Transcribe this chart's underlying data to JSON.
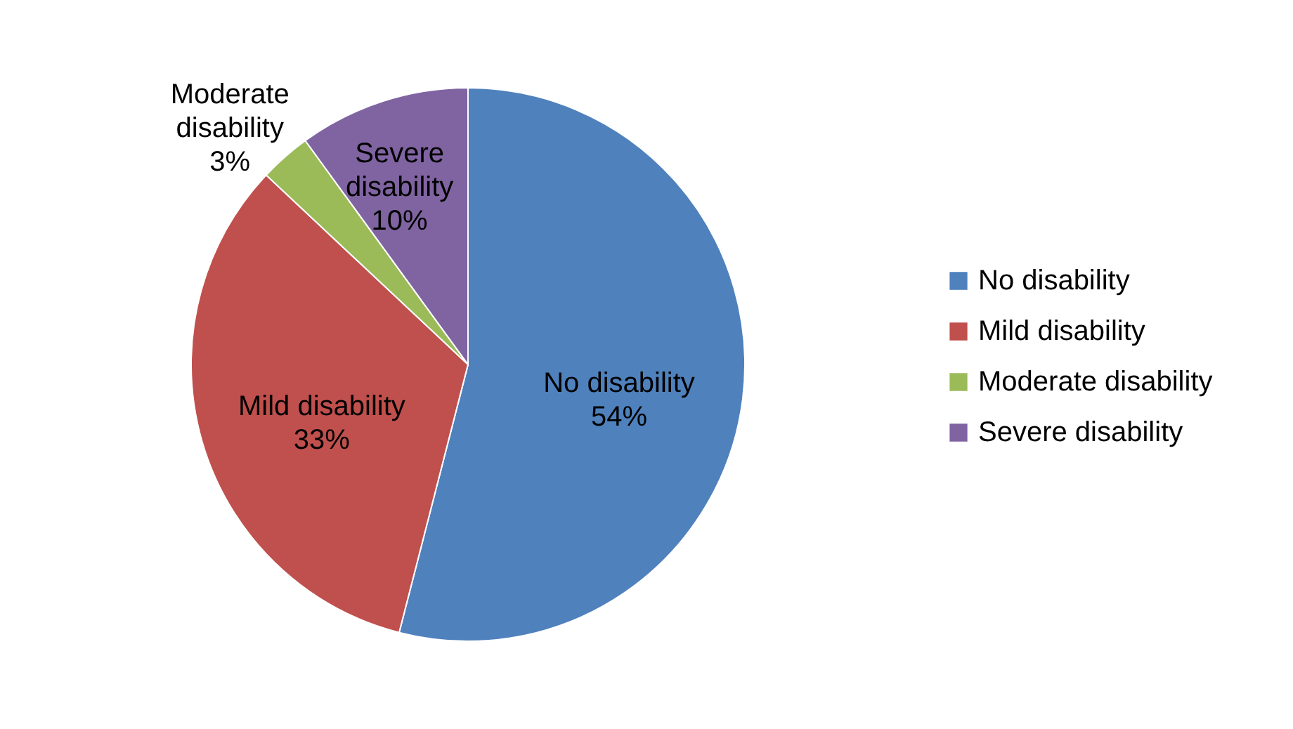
{
  "chart_data": {
    "type": "pie",
    "categories": [
      "No disability",
      "Mild disability",
      "Moderate disability",
      "Severe disability"
    ],
    "values": [
      54,
      33,
      3,
      10
    ],
    "colors": [
      "#4f81bd",
      "#c0504d",
      "#9bbb59",
      "#8064a2"
    ],
    "value_labels": [
      "54%",
      "33%",
      "3%",
      "10%"
    ],
    "legend": "right"
  }
}
